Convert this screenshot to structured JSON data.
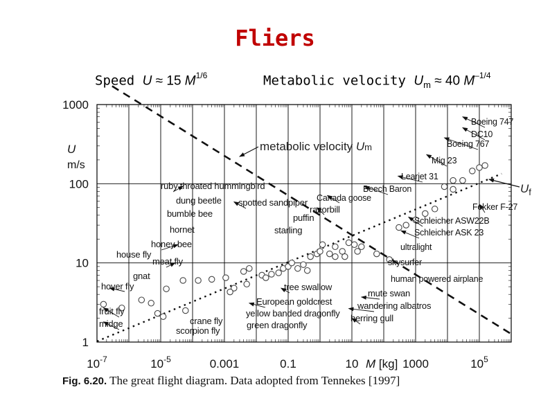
{
  "slide": {
    "title": "Fliers",
    "speed_prefix": "Speed",
    "speed_var": "U",
    "speed_mid": " ≈ 15 ",
    "speed_m": "M",
    "speed_exp": "1/6",
    "metab_prefix": "Metabolic velocity",
    "metab_var": "U",
    "metab_sub": "m",
    "metab_mid": " ≈ 40 ",
    "metab_m": "M",
    "metab_exp": "–1/4"
  },
  "caption": {
    "label": "Fig. 6.20.",
    "text": " The great flight diagram. Data adopted from Tennekes [1997]"
  },
  "chart_data": {
    "type": "scatter",
    "x_scale": "log",
    "y_scale": "log",
    "xlim": [
      1e-07,
      1000000.0
    ],
    "ylim": [
      1,
      1000
    ],
    "grid": true,
    "y_axis_label": [
      "U",
      "m/s"
    ],
    "x_axis_label": "M [kg]",
    "x_ticks": [
      "10^-7",
      "10^-5",
      "0.001",
      "0.1",
      "10",
      "1000",
      "10^5"
    ],
    "y_ticks": [
      "1",
      "10",
      "100",
      "1000"
    ],
    "lines": [
      {
        "name": "metabolic velocity Um",
        "sub": "m",
        "style": "dashed",
        "x_range": [
          3e-07,
          1000000.0
        ],
        "coef": 40,
        "exp": -0.25
      },
      {
        "name": "Uf",
        "sub": "f",
        "style": "dotted",
        "x_range": [
          1e-07,
          500000.0
        ],
        "coef": 15,
        "exp": 0.1667
      }
    ],
    "points": [
      {
        "x": 1.6e-07,
        "y": 3.0
      },
      {
        "x": 6e-07,
        "y": 2.7
      },
      {
        "x": 2.5e-06,
        "y": 3.4
      },
      {
        "x": 5e-06,
        "y": 3.1
      },
      {
        "x": 1.5e-05,
        "y": 4.7
      },
      {
        "x": 8e-06,
        "y": 2.3
      },
      {
        "x": 1.2e-05,
        "y": 2.1
      },
      {
        "x": 6e-05,
        "y": 2.5
      },
      {
        "x": 5e-05,
        "y": 6.0
      },
      {
        "x": 0.00015,
        "y": 6.0
      },
      {
        "x": 0.0004,
        "y": 6.2
      },
      {
        "x": 0.0011,
        "y": 6.5
      },
      {
        "x": 0.002,
        "y": 4.8
      },
      {
        "x": 0.005,
        "y": 5.4
      },
      {
        "x": 0.0015,
        "y": 4.3
      },
      {
        "x": 0.004,
        "y": 7.8
      },
      {
        "x": 0.006,
        "y": 8.5
      },
      {
        "x": 0.015,
        "y": 7.0
      },
      {
        "x": 0.02,
        "y": 6.5
      },
      {
        "x": 0.03,
        "y": 7.2
      },
      {
        "x": 0.05,
        "y": 7.5
      },
      {
        "x": 0.07,
        "y": 8.5
      },
      {
        "x": 0.1,
        "y": 9.0
      },
      {
        "x": 0.13,
        "y": 10.0
      },
      {
        "x": 0.2,
        "y": 8.5
      },
      {
        "x": 0.3,
        "y": 9.5
      },
      {
        "x": 0.4,
        "y": 8.0
      },
      {
        "x": 0.5,
        "y": 12.0
      },
      {
        "x": 0.8,
        "y": 13.0
      },
      {
        "x": 1.0,
        "y": 14.0
      },
      {
        "x": 1.2,
        "y": 17.0
      },
      {
        "x": 2.0,
        "y": 13.0
      },
      {
        "x": 3.0,
        "y": 16.0
      },
      {
        "x": 3.0,
        "y": 12.0
      },
      {
        "x": 5.0,
        "y": 14.0
      },
      {
        "x": 6.0,
        "y": 12.0
      },
      {
        "x": 8.0,
        "y": 18.0
      },
      {
        "x": 12.0,
        "y": 17.0
      },
      {
        "x": 15.0,
        "y": 14.0
      },
      {
        "x": 20.0,
        "y": 16.0
      },
      {
        "x": 60,
        "y": 13.0
      },
      {
        "x": 150,
        "y": 11.0
      },
      {
        "x": 300,
        "y": 28.0
      },
      {
        "x": 500,
        "y": 30.0
      },
      {
        "x": 1000,
        "y": 35.0
      },
      {
        "x": 2000,
        "y": 42.0
      },
      {
        "x": 4000,
        "y": 48.0
      },
      {
        "x": 8000,
        "y": 92.0
      },
      {
        "x": 15000.0,
        "y": 110.0
      },
      {
        "x": 15000.0,
        "y": 85.0
      },
      {
        "x": 30000.0,
        "y": 110.0
      },
      {
        "x": 60000.0,
        "y": 145.0
      },
      {
        "x": 100000.0,
        "y": 160.0
      },
      {
        "x": 150000.0,
        "y": 170.0
      }
    ],
    "annotations": [
      {
        "label": "Boeing 747",
        "tx": 30000.0,
        "ty": 700
      },
      {
        "label": "DC10",
        "tx": 30000.0,
        "ty": 510
      },
      {
        "label": "Boeing 767",
        "tx": 8000,
        "ty": 380
      },
      {
        "label": "Mig 23",
        "tx": 2200,
        "ty": 233
      },
      {
        "label": "Learjet 31",
        "tx": 280,
        "ty": 125
      },
      {
        "label": "Beech Baron",
        "tx": 25,
        "ty": 92
      },
      {
        "label": "Canada goose",
        "tx": 1.7,
        "ty": 71
      },
      {
        "label": "razorbill",
        "tx": 0.8,
        "ty": 50
      },
      {
        "label": "puffin",
        "tx": 0.37,
        "ty": 37
      },
      {
        "label": "starling",
        "tx": 0.11,
        "ty": 21.5
      },
      {
        "label": "spotted sandpiper",
        "tx": 0.002,
        "ty": 59
      },
      {
        "label": "ruby throated hummingbird",
        "tx": 5e-05,
        "ty": 93
      },
      {
        "label": "dung beetle",
        "tx": 0.00012,
        "ty": 61
      },
      {
        "label": "bumble bee",
        "tx": 7e-05,
        "ty": 42
      },
      {
        "label": "hornet",
        "tx": 7e-05,
        "ty": 26
      },
      {
        "label": "honey bee",
        "tx": 3.5e-05,
        "ty": 17
      },
      {
        "label": "house fly",
        "tx": 1.2e-06,
        "ty": 12
      },
      {
        "label": "meat fly",
        "tx": 2.8e-05,
        "ty": 10
      },
      {
        "label": "gnat",
        "tx": 1.6e-06,
        "ty": 6.4
      },
      {
        "label": "hover fly",
        "tx": 2.5e-07,
        "ty": 4.8
      },
      {
        "label": "fruit fly",
        "tx": 1.6e-07,
        "ty": 2.7
      },
      {
        "label": "midge",
        "tx": 1.6e-07,
        "ty": 1.8
      },
      {
        "label": "crane fly",
        "tx": 0.00015,
        "ty": 1.9
      },
      {
        "label": "scorpion fly",
        "tx": 0.00015,
        "ty": 1.45
      },
      {
        "label": "tree swallow",
        "tx": 0.06,
        "ty": 4.8
      },
      {
        "label": "European goldcrest",
        "tx": 0.006,
        "ty": 3.1
      },
      {
        "label": "yellow banded dragonfly",
        "tx": 0.006,
        "ty": 2.3
      },
      {
        "label": "green dragonfly",
        "tx": 0.006,
        "ty": 1.75
      },
      {
        "label": "mute swan",
        "tx": 20,
        "ty": 3.7
      },
      {
        "label": "wandering albatros",
        "tx": 8,
        "ty": 2.65
      },
      {
        "label": "herring gull",
        "tx": 10,
        "ty": 2.0
      },
      {
        "label": "Fokker F-27",
        "tx": 100000.0,
        "ty": 55
      },
      {
        "label": "Schleicher ASW22B",
        "tx": 600,
        "ty": 38
      },
      {
        "label": "Schleicher ASK 23",
        "tx": 350,
        "ty": 25.5
      },
      {
        "label": "ultralight",
        "tx": 300,
        "ty": 16
      },
      {
        "label": "skysurfer",
        "tx": 120,
        "ty": 10
      },
      {
        "label": "human powered airplane",
        "tx": 200,
        "ty": 6
      }
    ]
  }
}
